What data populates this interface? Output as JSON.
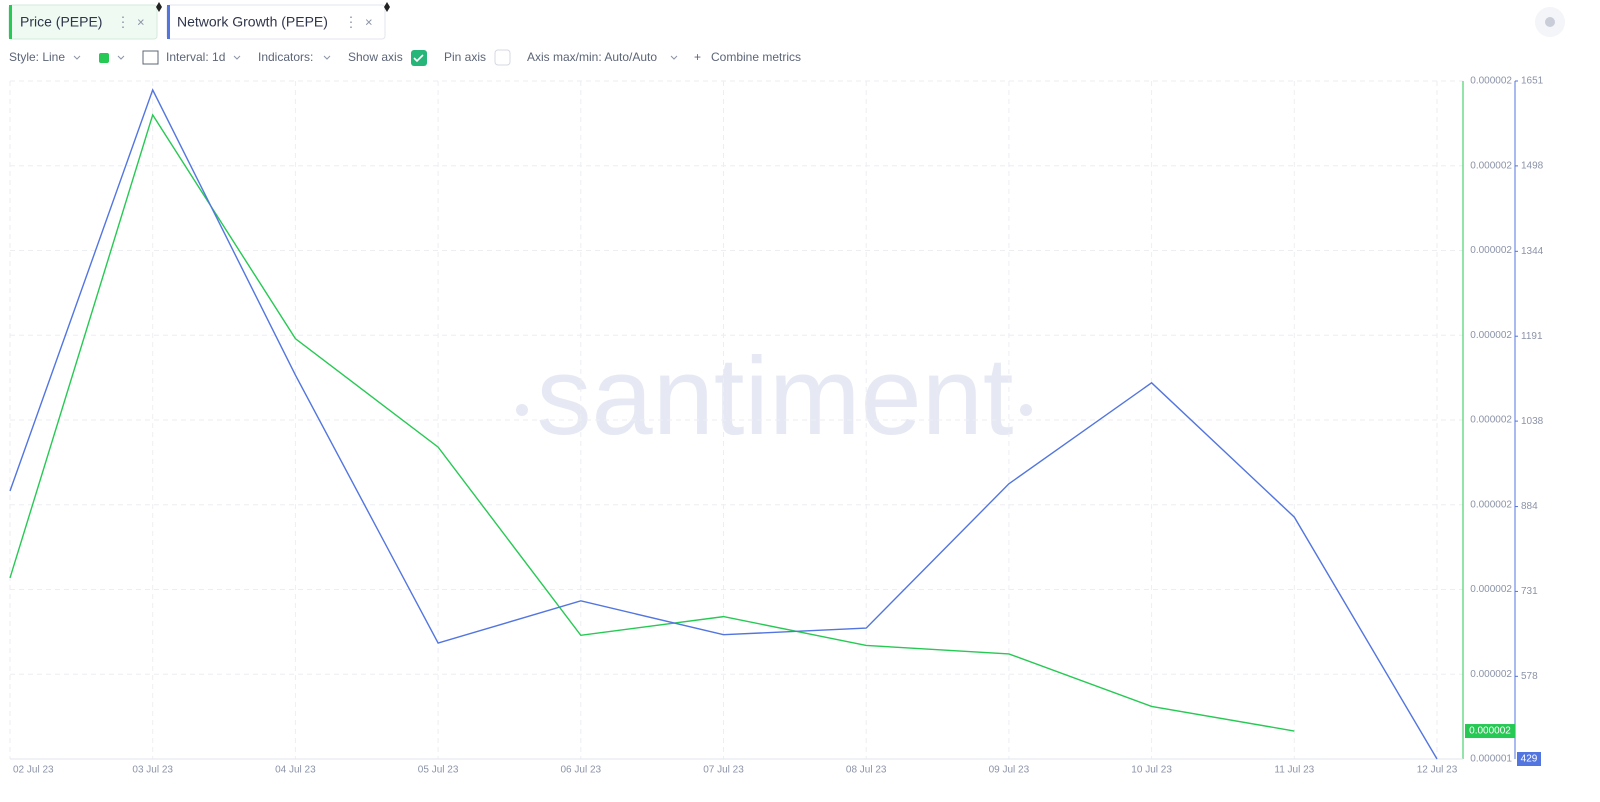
{
  "toolbar": {
    "tabs": [
      "Price (PEPE)",
      "Network Growth (PEPE)"
    ],
    "controls": [
      "Style: Line",
      "Interval: 1d",
      "Indicators:",
      "Show axis",
      "Pin axis",
      "Axis max/min: Auto/Auto",
      "Combine metrics"
    ]
  },
  "watermark": "santiment",
  "chart_data": {
    "type": "line",
    "x": [
      "02 Jul 23",
      "03 Jul 23",
      "04 Jul 23",
      "05 Jul 23",
      "06 Jul 23",
      "07 Jul 23",
      "08 Jul 23",
      "09 Jul 23",
      "10 Jul 23",
      "11 Jul 23",
      "12 Jul 23"
    ],
    "series": [
      {
        "name": "Price (PEPE)",
        "color": "#26c953",
        "axis": "y",
        "values": [
          1.5968e-06,
          1.87e-06,
          1.738e-06,
          1.674e-06,
          1.563e-06,
          1.574e-06,
          1.557e-06,
          1.552e-06,
          1.521e-06,
          1.5065e-06,
          null
        ],
        "value_labels": [
          null,
          null,
          null,
          null,
          null,
          null,
          null,
          null,
          null,
          "0.000002",
          null
        ]
      },
      {
        "name": "Network Growth (PEPE)",
        "color": "#5275e0",
        "axis": "y2",
        "values": [
          912,
          1635,
          1121,
          638,
          714,
          653,
          665,
          925,
          1107,
          865,
          429
        ]
      }
    ],
    "ylim": [
      1.49e-06,
      1.89e-06
    ],
    "yticks": [
      {
        "value": 1.49e-06,
        "label": "0.000001"
      },
      {
        "value": 1.54e-06,
        "label": "0.000002"
      },
      {
        "value": 1.59e-06,
        "label": "0.000002"
      },
      {
        "value": 1.64e-06,
        "label": "0.000002"
      },
      {
        "value": 1.69e-06,
        "label": "0.000002"
      },
      {
        "value": 1.74e-06,
        "label": "0.000002"
      },
      {
        "value": 1.79e-06,
        "label": "0.000002"
      },
      {
        "value": 1.84e-06,
        "label": "0.000002"
      },
      {
        "value": 1.89e-06,
        "label": "0.000002"
      }
    ],
    "y2lim": [
      429,
      1651
    ],
    "y2ticks": [
      578,
      731,
      884,
      1038,
      1191,
      1344,
      1498,
      1651
    ],
    "grid": true
  }
}
